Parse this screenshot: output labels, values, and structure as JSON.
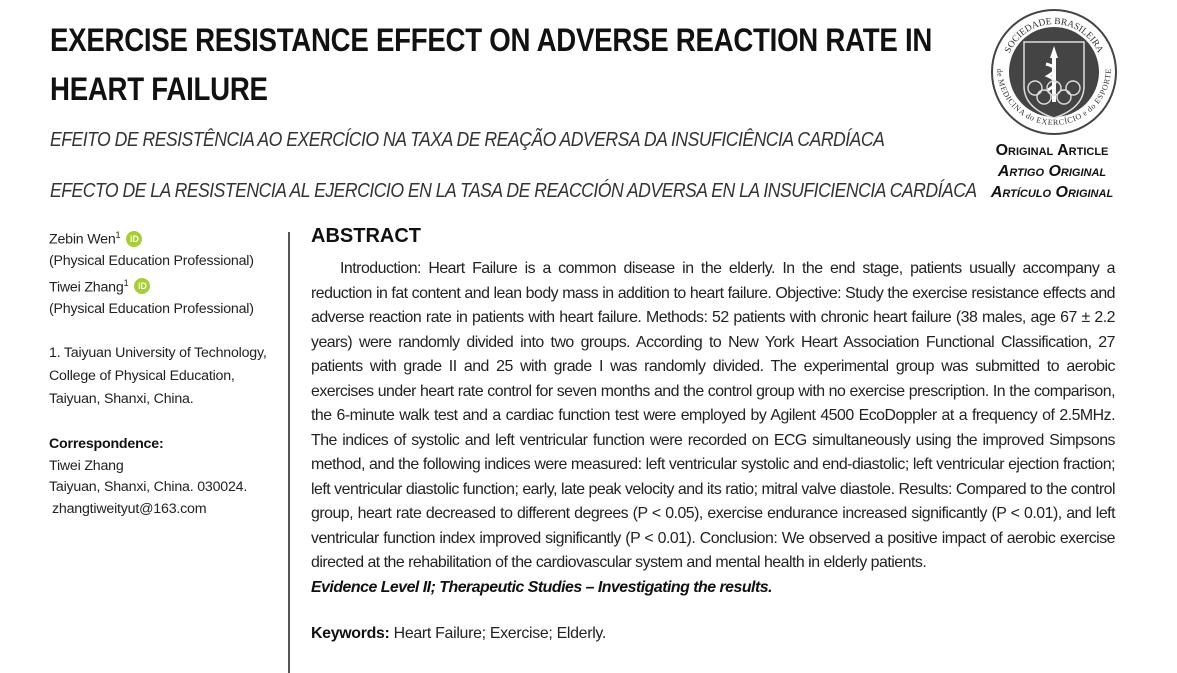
{
  "title": "EXERCISE RESISTANCE EFFECT ON ADVERSE REACTION RATE IN HEART FAILURE",
  "subtitle_pt": "EFEITO DE RESISTÊNCIA AO EXERCÍCIO NA TAXA DE REAÇÃO ADVERSA DA INSUFICIÊNCIA CARDÍACA",
  "subtitle_es": "EFECTO DE LA RESISTENCIA AL EJERCICIO EN LA TASA DE REACCIÓN ADVERSA EN LA INSUFICIENCIA CARDÍACA",
  "logo": {
    "text_top": "SOCIEDADE BRASILEIRA",
    "text_bottom": "de MEDICINA do EXERCÍCIO e do ESPORTE"
  },
  "article_type": [
    "Original Article",
    "Artigo Original",
    "Artículo Original"
  ],
  "authors": [
    {
      "name": "Zebin Wen",
      "sup": "1",
      "role": "(Physical Education Professional)",
      "orcid": "iD"
    },
    {
      "name": "Tiwei Zhang",
      "sup": "1",
      "role": "(Physical Education Professional)",
      "orcid": "iD"
    }
  ],
  "affiliation": [
    "1. Taiyuan University of Technology,",
    "College of Physical Education,",
    "Taiyuan, Shanxi, China."
  ],
  "correspondence": {
    "label": "Correspondence:",
    "lines": [
      "Tiwei Zhang",
      "Taiyuan, Shanxi, China. 030024.",
      "zhangtiweityut@163.com"
    ]
  },
  "abstract": {
    "heading": "ABSTRACT",
    "text": "Introduction: Heart Failure is a common disease in the elderly. In the end stage, patients usually accompany a reduction in fat content and lean body mass in addition to heart failure. Objective: Study the exercise resistance effects and adverse reaction rate in patients with heart failure. Methods: 52 patients with chronic heart failure (38 males, age 67 ± 2.2 years) were randomly divided into two groups. According to New York Heart Association Functional Classification, 27 patients with grade II and 25 with grade I was randomly divided. The experimental group was submitted to aerobic exercises under heart rate control for seven months and the control group with no exercise prescription. In the comparison, the 6-minute walk test and a cardiac function test were employed by Agilent 4500 EcoDoppler at a frequency of 2.5MHz. The indices of systolic and left ventricular function were recorded on ECG simultaneously using the improved Simpsons method, and the following indices were measured: left ventricular systolic and end-diastolic; left ventricular ejection fraction; left ventricular diastolic function; early, late peak velocity and its ratio; mitral valve diastole. Results: Compared to the control group, heart rate decreased to different degrees (P < 0.05), exercise endurance increased significantly (P < 0.01), and left ventricular function index improved significantly (P < 0.01). Conclusion: We observed a positive impact of aerobic exercise directed at the rehabilitation of the cardiovascular system and mental health in elderly patients.",
    "evidence": "Evidence Level II; Therapeutic Studies – Investigating the results."
  },
  "keywords": {
    "label": "Keywords:",
    "text": "Heart Failure; Exercise; Elderly."
  }
}
